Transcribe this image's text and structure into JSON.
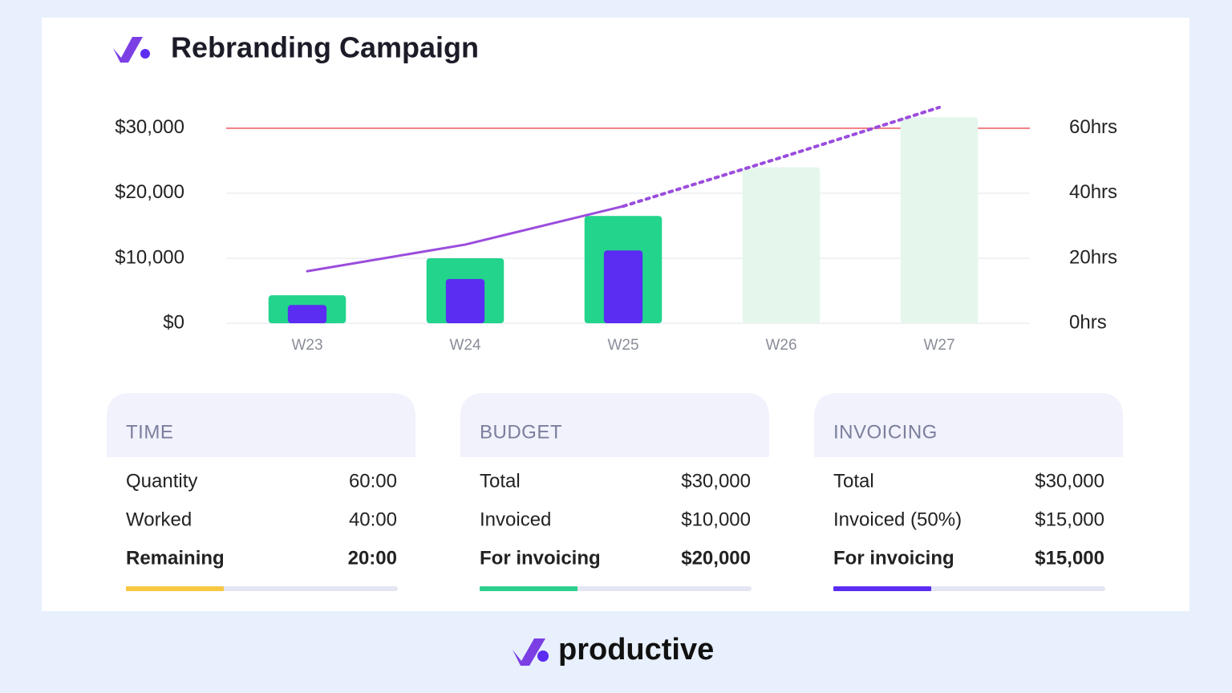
{
  "title": "Rebranding Campaign",
  "chart_data": {
    "type": "bar",
    "categories": [
      "W23",
      "W24",
      "W25",
      "W26",
      "W27"
    ],
    "ylim": [
      0,
      38000
    ],
    "yticks": [
      {
        "value": 0,
        "label": "$0"
      },
      {
        "value": 10000,
        "label": "$10,000"
      },
      {
        "value": 20000,
        "label": "$20,000"
      },
      {
        "value": 30000,
        "label": "$30,000"
      }
    ],
    "y2lim": [
      0,
      76
    ],
    "y2ticks": [
      {
        "value": 0,
        "label": "0hrs"
      },
      {
        "value": 20,
        "label": "20hrs"
      },
      {
        "value": 40,
        "label": "40hrs"
      },
      {
        "value": 60,
        "label": "60hrs"
      }
    ],
    "grid": true,
    "reference_line": {
      "value": 30000,
      "color": "#f07c84"
    },
    "bars": [
      {
        "colors": [
          "#22d48c",
          "#22d48c",
          "#22d48c",
          "#e5f7ec",
          "#e5f7ec"
        ],
        "values": [
          4300,
          10000,
          16500,
          24000,
          31700
        ],
        "width": 0.49
      },
      {
        "colors": [
          "#5b2cf2",
          "#5b2cf2",
          "#5b2cf2"
        ],
        "values": [
          2800,
          6800,
          11200
        ],
        "width": 0.245
      }
    ],
    "lines": [
      {
        "color": "#9b4ddd",
        "dashed": false,
        "values": [
          8000,
          12100,
          18000,
          null,
          null
        ]
      },
      {
        "color": "#9b4ddd",
        "dashed": true,
        "values": [
          null,
          null,
          18000,
          25500,
          33200
        ]
      }
    ]
  },
  "panels": [
    {
      "title": "TIME",
      "rows": [
        {
          "label": "Quantity",
          "value": "60:00"
        },
        {
          "label": "Worked",
          "value": "40:00"
        },
        {
          "label": "Remaining",
          "value": "20:00"
        }
      ],
      "progress": 0.36,
      "color": "#f8c843"
    },
    {
      "title": "BUDGET",
      "rows": [
        {
          "label": "Total",
          "value": "$30,000"
        },
        {
          "label": "Invoiced",
          "value": "$10,000"
        },
        {
          "label": "For invoicing",
          "value": "$20,000"
        }
      ],
      "progress": 0.36,
      "color": "#2dcf8e"
    },
    {
      "title": "INVOICING",
      "rows": [
        {
          "label": "Total",
          "value": "$30,000"
        },
        {
          "label": "Invoiced (50%)",
          "value": "$15,000"
        },
        {
          "label": "For invoicing",
          "value": "$15,000"
        }
      ],
      "progress": 0.36,
      "color": "#5b2cf2"
    }
  ],
  "brand": "productive"
}
